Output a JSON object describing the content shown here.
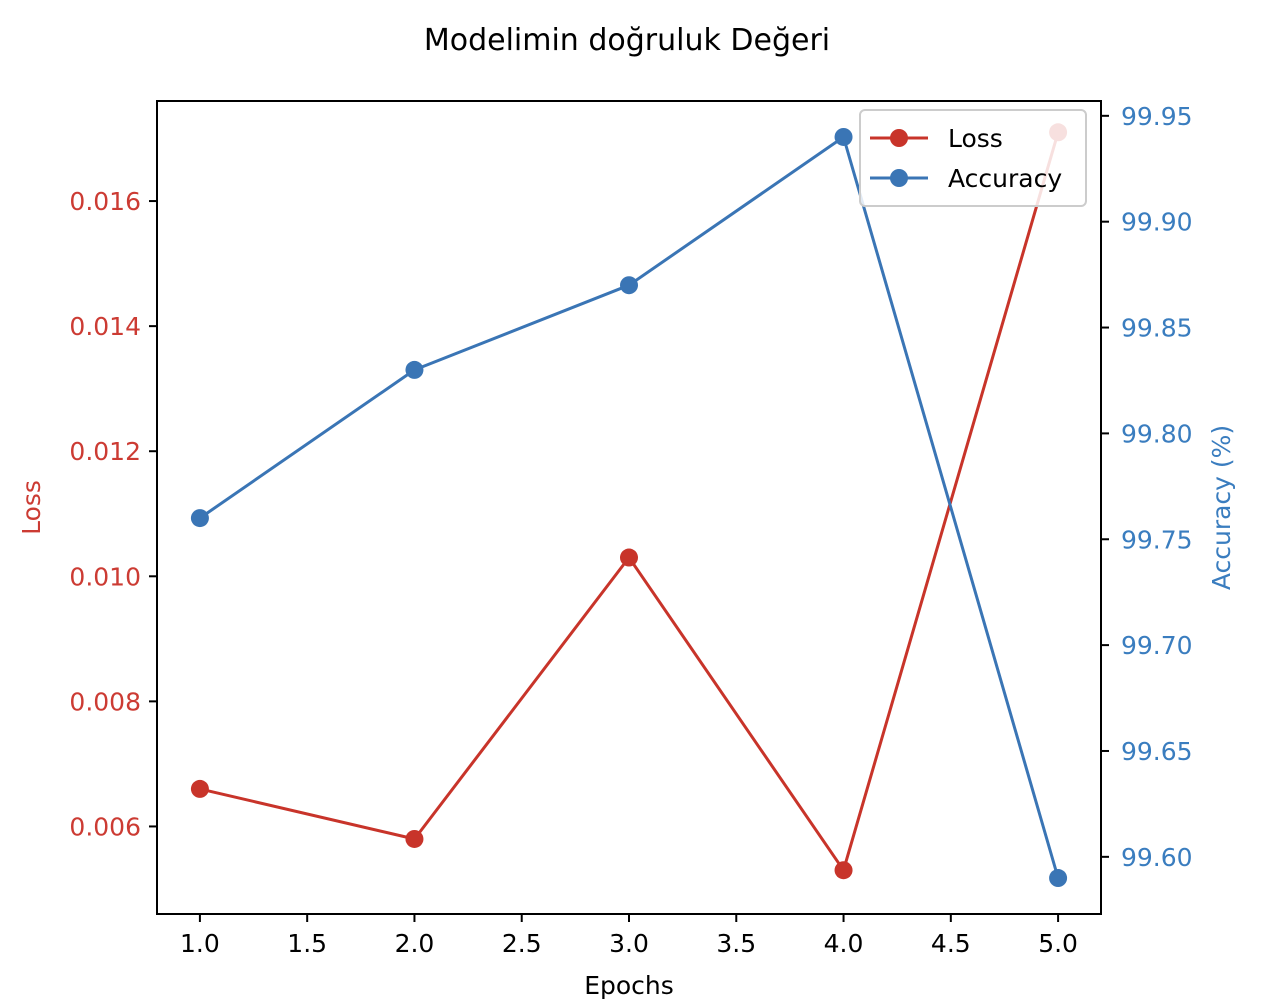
{
  "chart_data": {
    "type": "line",
    "title": "Modelimin doğruluk Değeri",
    "xlabel": "Epochs",
    "ylabel_left": "Loss",
    "ylabel_right": "Accuracy (%)",
    "x": [
      1.0,
      2.0,
      3.0,
      4.0,
      5.0
    ],
    "xlim": [
      0.8,
      5.2
    ],
    "x_ticks": [
      1.0,
      1.5,
      2.0,
      2.5,
      3.0,
      3.5,
      4.0,
      4.5,
      5.0
    ],
    "x_tick_labels": [
      "1.0",
      "1.5",
      "2.0",
      "2.5",
      "3.0",
      "3.5",
      "4.0",
      "4.5",
      "5.0"
    ],
    "left_axis": {
      "ylim": [
        0.0046,
        0.0176
      ],
      "ticks": [
        0.006,
        0.008,
        0.01,
        0.012,
        0.014,
        0.016
      ],
      "tick_labels": [
        "0.006",
        "0.008",
        "0.010",
        "0.012",
        "0.014",
        "0.016"
      ],
      "color": "#cc3b33"
    },
    "right_axis": {
      "ylim": [
        99.573,
        99.957
      ],
      "ticks": [
        99.6,
        99.65,
        99.7,
        99.75,
        99.8,
        99.85,
        99.9,
        99.95
      ],
      "tick_labels": [
        "99.60",
        "99.65",
        "99.70",
        "99.75",
        "99.80",
        "99.85",
        "99.90",
        "99.95"
      ],
      "color": "#3a7dbf"
    },
    "series": [
      {
        "name": "Loss",
        "axis": "left",
        "color": "#c8342a",
        "values": [
          0.0066,
          0.0058,
          0.0103,
          0.0053,
          0.0171
        ]
      },
      {
        "name": "Accuracy",
        "axis": "right",
        "color": "#3a75b5",
        "values": [
          99.76,
          99.83,
          99.87,
          99.94,
          99.59
        ]
      }
    ],
    "legend": {
      "placement": "top-right",
      "entries": [
        "Loss",
        "Accuracy"
      ]
    },
    "grid": false
  }
}
